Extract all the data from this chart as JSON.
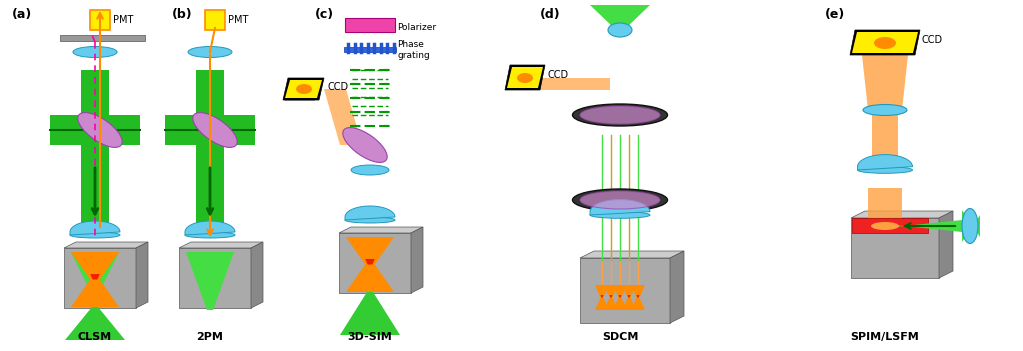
{
  "fig_width": 10.23,
  "fig_height": 3.51,
  "bg_color": "#ffffff",
  "labels": {
    "a": "(a)",
    "b": "(b)",
    "c": "(c)",
    "d": "(d)",
    "e": "(e)",
    "clsm": "CLSM",
    "2pm": "2PM",
    "3dsim": "3D-SIM",
    "sdcm": "SDCM",
    "spim": "SPIM/LSFM",
    "pmt_a": "PMT",
    "pmt_b": "PMT",
    "ccd_c": "CCD",
    "ccd_d": "CCD",
    "ccd_e": "CCD",
    "polarizer": "Polarizer",
    "phase_grating": "Phase\ngrating"
  },
  "colors": {
    "green_body": "#22bb22",
    "dark_green": "#006600",
    "orange": "#ff8c00",
    "orange_light": "#ffa040",
    "yellow": "#ffee00",
    "yellow_dark": "#ddcc00",
    "blue_lens": "#66ccee",
    "blue_dark": "#2299bb",
    "purple": "#cc88cc",
    "purple_dark": "#9944aa",
    "pink_dashed": "#ee1188",
    "red": "#ee2200",
    "red_dark": "#cc0000",
    "gray": "#aaaaaa",
    "gray_dark": "#888888",
    "gray_light": "#cccccc",
    "black": "#000000",
    "white": "#ffffff",
    "magenta": "#ff00aa",
    "teal_dark": "#007766"
  }
}
